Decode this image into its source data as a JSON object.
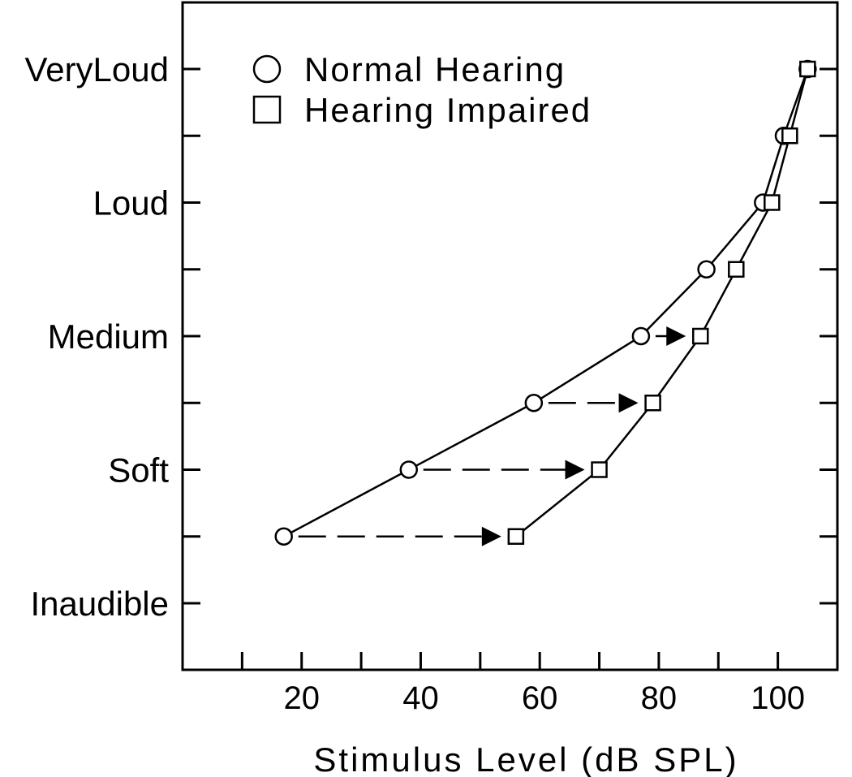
{
  "chart_data": {
    "type": "line",
    "title": "",
    "xlabel": "Stimulus Level (dB SPL)",
    "ylabel": "",
    "xlim": [
      0,
      110
    ],
    "ylim": [
      0,
      9
    ],
    "x_ticks": [
      20,
      40,
      60,
      80,
      100
    ],
    "x_minor_ticks": [
      10,
      30,
      50,
      70,
      90
    ],
    "y_tick_positions": [
      1,
      2,
      3,
      4,
      5,
      6,
      7,
      8
    ],
    "y_categories": [
      {
        "label": "Inaudible",
        "y": 1
      },
      {
        "label": "Soft",
        "y": 3
      },
      {
        "label": "Medium",
        "y": 5
      },
      {
        "label": "Loud",
        "y": 7
      },
      {
        "label": "VeryLoud",
        "y": 9
      }
    ],
    "grid": false,
    "legend_position": "top-left",
    "series": [
      {
        "name": "Normal Hearing",
        "marker": "circle",
        "points": [
          {
            "x": 17,
            "y": 2
          },
          {
            "x": 38,
            "y": 3
          },
          {
            "x": 59,
            "y": 4
          },
          {
            "x": 77,
            "y": 5
          },
          {
            "x": 88,
            "y": 6
          },
          {
            "x": 97.5,
            "y": 7
          },
          {
            "x": 101,
            "y": 8
          },
          {
            "x": 105,
            "y": 9
          }
        ]
      },
      {
        "name": "Hearing Impaired",
        "marker": "square",
        "points": [
          {
            "x": 56,
            "y": 2
          },
          {
            "x": 70,
            "y": 3
          },
          {
            "x": 79,
            "y": 4
          },
          {
            "x": 87,
            "y": 5
          },
          {
            "x": 93,
            "y": 6
          },
          {
            "x": 99,
            "y": 7
          },
          {
            "x": 102,
            "y": 8
          },
          {
            "x": 105,
            "y": 9
          }
        ]
      }
    ],
    "arrows": [
      {
        "y": 2,
        "x_from": 17,
        "x_to": 56
      },
      {
        "y": 3,
        "x_from": 38,
        "x_to": 70
      },
      {
        "y": 4,
        "x_from": 59,
        "x_to": 79
      },
      {
        "y": 5,
        "x_from": 77,
        "x_to": 87
      }
    ]
  }
}
